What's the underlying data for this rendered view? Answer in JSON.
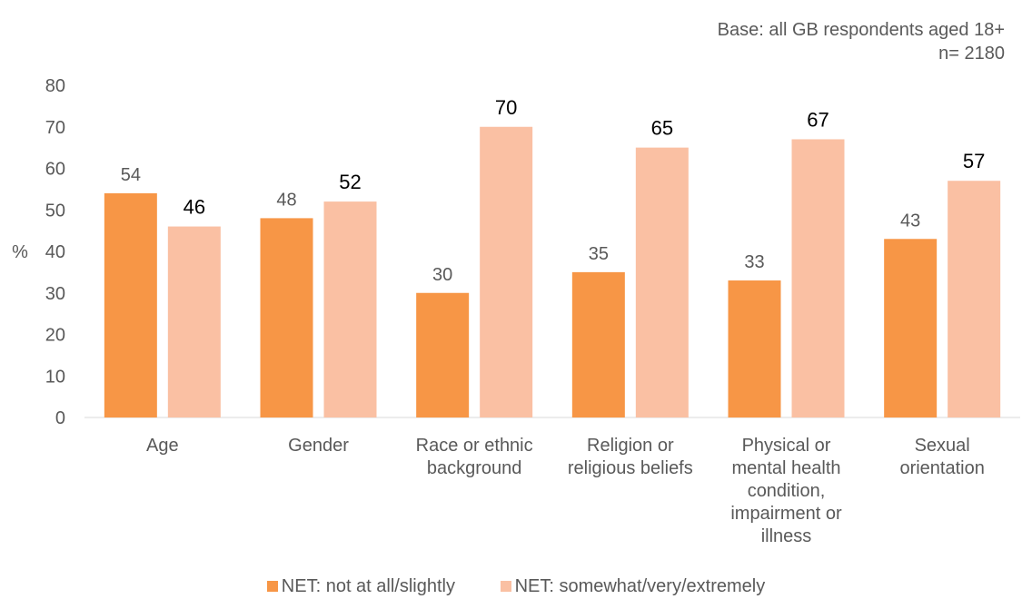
{
  "note": {
    "line1": "Base: all GB respondents aged 18+",
    "line2": "n= 2180"
  },
  "chart_data": {
    "type": "bar",
    "ylabel": "%",
    "ylim": [
      0,
      80
    ],
    "yticks": [
      0,
      10,
      20,
      30,
      40,
      50,
      60,
      70,
      80
    ],
    "grid": false,
    "legend_position": "bottom",
    "categories": [
      [
        "Age"
      ],
      [
        "Gender"
      ],
      [
        "Race or ethnic",
        "background"
      ],
      [
        "Religion or",
        "religious beliefs"
      ],
      [
        "Physical or",
        "mental health",
        "condition,",
        "impairment or",
        "illness"
      ],
      [
        "Sexual",
        "orientation"
      ]
    ],
    "series": [
      {
        "name": "NET: not at all/slightly",
        "color": "#F79646",
        "label_color": "#595959",
        "values": [
          54,
          48,
          30,
          35,
          33,
          43
        ]
      },
      {
        "name": "NET: somewhat/very/extremely",
        "color": "#FAC0A3",
        "label_color": "#000000",
        "values": [
          46,
          52,
          70,
          65,
          67,
          57
        ]
      }
    ]
  }
}
